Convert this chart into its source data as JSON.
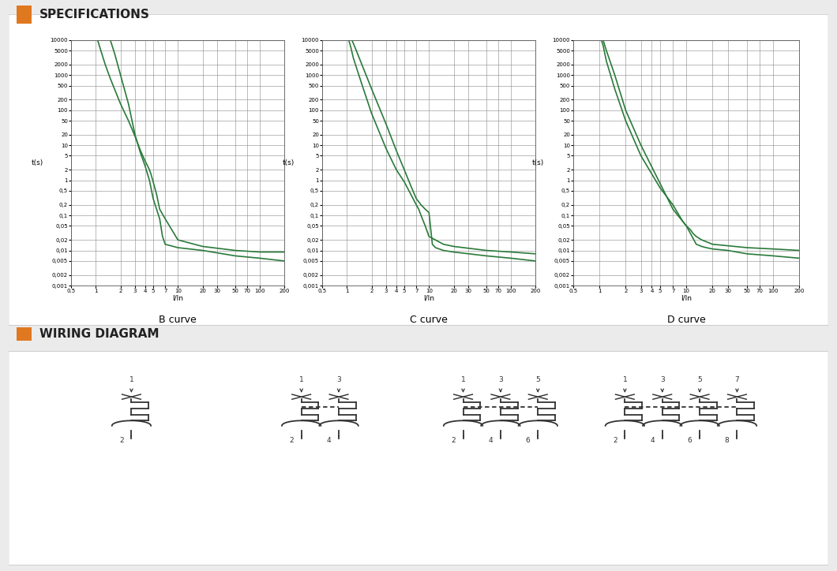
{
  "bg_color": "#ebebeb",
  "panel_color": "#ffffff",
  "green": "#2a7a3a",
  "grid_color": "#aaaaaa",
  "text_color": "#333333",
  "orange_rect": "#e07820",
  "section_titles": [
    "SPECIFICATIONS",
    "WIRING DIAGRAM"
  ],
  "curve_titles": [
    "B curve",
    "C curve",
    "D curve"
  ],
  "xlabel": "I/In",
  "ylabel": "t(s)",
  "B_left_x": [
    1.05,
    1.1,
    1.3,
    1.5,
    2.0,
    2.5,
    3.0,
    3.5,
    4.0,
    4.3,
    4.5,
    4.7,
    5.0,
    5.5,
    6.0,
    7.0,
    10.0,
    20.0,
    50.0,
    100.0,
    200.0
  ],
  "B_left_y": [
    10000,
    7000,
    2000,
    800,
    150,
    50,
    18,
    7,
    3.5,
    2.5,
    2.0,
    1.5,
    0.9,
    0.4,
    0.15,
    0.08,
    0.02,
    0.013,
    0.01,
    0.009,
    0.009
  ],
  "B_right_x": [
    1.5,
    1.7,
    2.0,
    2.5,
    3.0,
    3.5,
    4.0,
    4.5,
    5.0,
    5.5,
    6.0,
    6.5,
    7.0,
    10.0,
    20.0,
    50.0,
    100.0,
    200.0
  ],
  "B_right_y": [
    10000,
    4000,
    1000,
    150,
    20,
    6,
    2.5,
    1.0,
    0.3,
    0.15,
    0.08,
    0.025,
    0.015,
    0.012,
    0.01,
    0.007,
    0.006,
    0.005
  ],
  "C_left_x": [
    1.05,
    1.1,
    1.2,
    1.5,
    2.0,
    3.0,
    4.0,
    5.0,
    6.0,
    7.0,
    7.5,
    8.0,
    8.5,
    9.0,
    10.0,
    15.0,
    20.0,
    50.0,
    100.0,
    200.0
  ],
  "C_left_y": [
    10000,
    7000,
    3000,
    600,
    80,
    8,
    2.0,
    0.9,
    0.4,
    0.2,
    0.15,
    0.1,
    0.07,
    0.05,
    0.025,
    0.015,
    0.013,
    0.01,
    0.009,
    0.008
  ],
  "C_right_x": [
    1.15,
    1.3,
    2.0,
    3.0,
    4.0,
    5.0,
    6.0,
    7.0,
    8.0,
    9.0,
    10.0,
    11.0,
    12.0,
    15.0,
    20.0,
    50.0,
    100.0,
    200.0
  ],
  "C_right_y": [
    10000,
    5000,
    400,
    40,
    7,
    2.0,
    0.7,
    0.3,
    0.2,
    0.15,
    0.12,
    0.015,
    0.012,
    0.01,
    0.009,
    0.007,
    0.006,
    0.005
  ],
  "D_left_x": [
    1.05,
    1.1,
    1.2,
    1.5,
    2.0,
    3.0,
    5.0,
    7.0,
    9.0,
    10.0,
    11.0,
    11.5,
    12.0,
    13.0,
    15.0,
    20.0,
    50.0,
    100.0,
    200.0
  ],
  "D_left_y": [
    10000,
    7000,
    2500,
    400,
    50,
    5,
    0.6,
    0.2,
    0.07,
    0.05,
    0.04,
    0.035,
    0.03,
    0.025,
    0.02,
    0.015,
    0.012,
    0.011,
    0.01
  ],
  "D_right_x": [
    1.1,
    1.2,
    1.5,
    2.0,
    3.0,
    5.0,
    7.0,
    10.0,
    13.0,
    15.0,
    17.0,
    20.0,
    30.0,
    50.0,
    100.0,
    200.0
  ],
  "D_right_y": [
    10000,
    5000,
    1000,
    100,
    10,
    0.8,
    0.15,
    0.05,
    0.015,
    0.013,
    0.012,
    0.011,
    0.01,
    0.008,
    0.007,
    0.006
  ]
}
